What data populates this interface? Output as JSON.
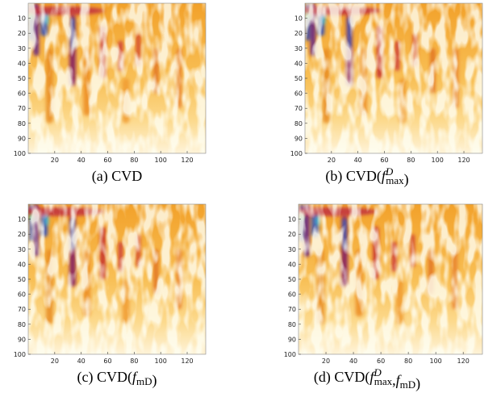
{
  "panels": [
    {
      "caption": [
        "(a) CVD"
      ],
      "xticks": [
        20,
        40,
        60,
        80,
        100,
        120
      ],
      "yticks": [
        10,
        20,
        30,
        40,
        50,
        60,
        70,
        80,
        90,
        100
      ],
      "xlim": [
        0,
        134
      ],
      "ylim": [
        0,
        100
      ]
    },
    {
      "caption": [
        "(b) CVD(",
        "f",
        "D",
        "max",
        ")"
      ],
      "xticks": [
        20,
        40,
        60,
        80,
        100,
        120
      ],
      "yticks": [
        10,
        20,
        30,
        40,
        50,
        60,
        70,
        80,
        90,
        100
      ],
      "xlim": [
        0,
        134
      ],
      "ylim": [
        0,
        100
      ]
    },
    {
      "caption": [
        "(c) CVD(",
        "f",
        "mD",
        ")"
      ],
      "xticks": [
        20,
        40,
        60,
        80,
        100,
        120
      ],
      "yticks": [
        10,
        20,
        30,
        40,
        50,
        60,
        70,
        80,
        90,
        100
      ],
      "xlim": [
        0,
        134
      ],
      "ylim": [
        0,
        100
      ]
    },
    {
      "caption": [
        "(d) CVD(",
        "f",
        "D",
        "max",
        ",",
        "f",
        "mD",
        ")"
      ],
      "xticks": [
        20,
        40,
        60,
        80,
        100,
        120
      ],
      "yticks": [
        10,
        20,
        30,
        40,
        50,
        60,
        70,
        80,
        90,
        100
      ],
      "xlim": [
        0,
        134
      ],
      "ylim": [
        0,
        100
      ]
    }
  ]
}
